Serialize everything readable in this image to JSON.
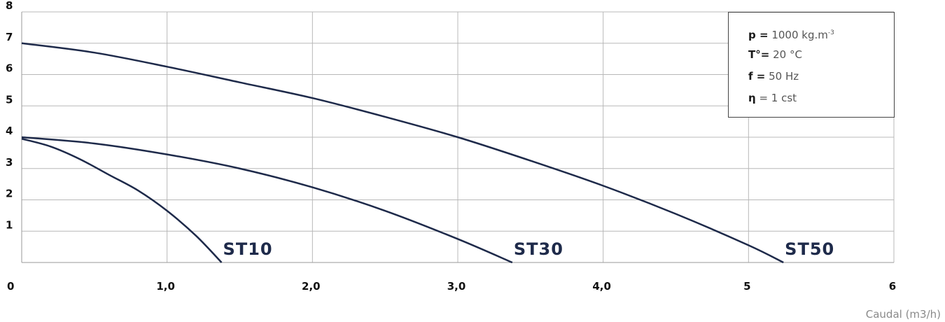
{
  "chart_data": {
    "type": "line",
    "title": "",
    "xlabel": "Caudal (m3/h)",
    "ylabel": "",
    "xlim": [
      0,
      6
    ],
    "ylim": [
      0,
      8
    ],
    "grid": true,
    "x_ticks": [
      "0",
      "1,0",
      "2,0",
      "3,0",
      "4,0",
      "5",
      "6"
    ],
    "y_ticks": [
      "1",
      "2",
      "3",
      "4",
      "5",
      "6",
      "7",
      "8"
    ],
    "line_color": "#1e2a4a",
    "series": [
      {
        "name": "ST10",
        "x": [
          0,
          0.2,
          0.4,
          0.6,
          0.8,
          1.0,
          1.2,
          1.375
        ],
        "y": [
          3.95,
          3.7,
          3.3,
          2.8,
          2.3,
          1.65,
          0.85,
          0
        ]
      },
      {
        "name": "ST30",
        "x": [
          0,
          0.5,
          1.0,
          1.5,
          2.0,
          2.5,
          3.0,
          3.375
        ],
        "y": [
          4.0,
          3.8,
          3.45,
          3.0,
          2.4,
          1.65,
          0.75,
          0
        ]
      },
      {
        "name": "ST50",
        "x": [
          0,
          0.5,
          1.0,
          1.5,
          2.0,
          2.5,
          3.0,
          3.5,
          4.0,
          4.5,
          5.0,
          5.24
        ],
        "y": [
          7.0,
          6.7,
          6.25,
          5.75,
          5.25,
          4.65,
          4.0,
          3.25,
          2.45,
          1.55,
          0.55,
          0
        ]
      }
    ]
  },
  "info": [
    {
      "label": "p =",
      "value": "1000 kg.m",
      "sup": "-3"
    },
    {
      "label": "T°=",
      "value": "20 °C",
      "sup": ""
    },
    {
      "label": "f =",
      "value": "50 Hz",
      "sup": ""
    },
    {
      "label": "η",
      "value": "= 1 cst",
      "sup": ""
    }
  ]
}
